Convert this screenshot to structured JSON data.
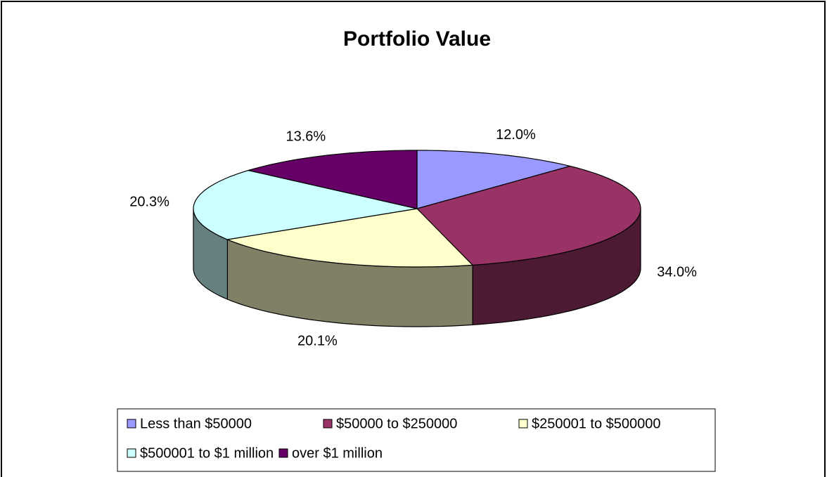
{
  "chart_data": {
    "type": "pie3d",
    "title": "Portfolio Value",
    "categories": [
      "Less than $50000",
      "$50000 to $250000",
      "$250001 to $500000",
      "$500001 to $1 million",
      "over $1 million"
    ],
    "values": [
      12.0,
      34.0,
      20.1,
      20.3,
      13.6
    ],
    "value_labels": [
      "12.0%",
      "34.0%",
      "20.1%",
      "20.3%",
      "13.6%"
    ],
    "colors": [
      "#9999ff",
      "#993366",
      "#ffffcc",
      "#ccffff",
      "#660066"
    ],
    "legend": "bottom"
  }
}
